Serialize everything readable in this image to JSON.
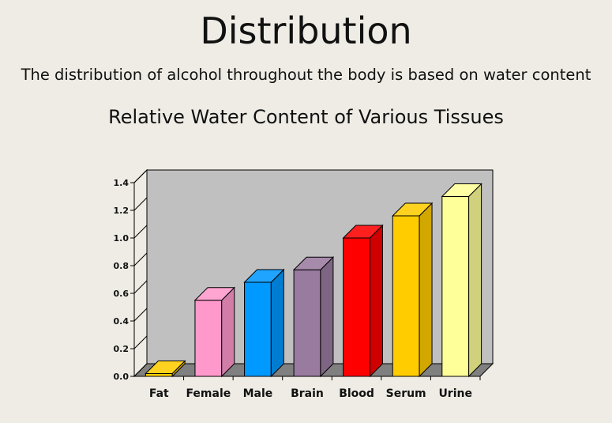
{
  "page": {
    "title": "Distribution",
    "subtitle": "The distribution of alcohol throughout the body is based on water content"
  },
  "chart_data": {
    "type": "bar",
    "title": "Relative Water Content of Various Tissues",
    "xlabel": "",
    "ylabel": "",
    "categories": [
      "Fat",
      "Female",
      "Male",
      "Brain",
      "Blood",
      "Serum",
      "Urine"
    ],
    "values": [
      0.02,
      0.55,
      0.68,
      0.77,
      1.0,
      1.16,
      1.3
    ],
    "colors": [
      "#FFCC00",
      "#FF99CC",
      "#0099FF",
      "#9A7BA0",
      "#FF0000",
      "#FFCC00",
      "#FFFF99"
    ],
    "ylim": [
      0,
      1.4
    ],
    "yticks": [
      "0.0",
      "0.2",
      "0.4",
      "0.6",
      "0.8",
      "1.0",
      "1.2",
      "1.4"
    ],
    "grid": false,
    "style": "3d"
  }
}
